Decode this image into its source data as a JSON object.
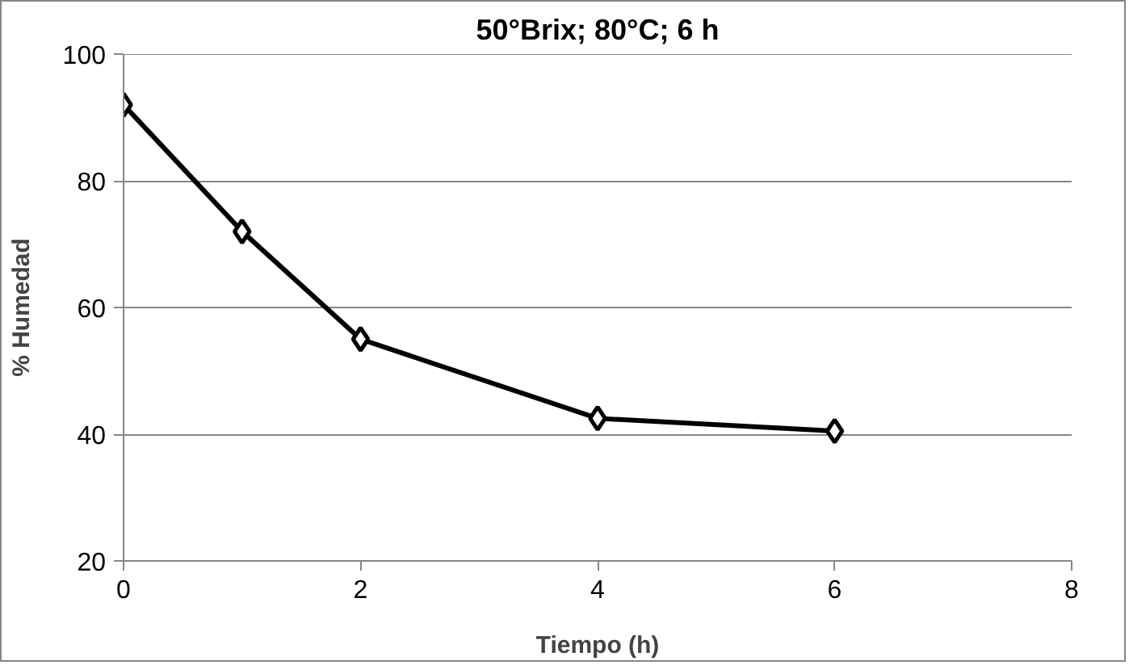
{
  "chart_data": {
    "type": "line",
    "title": "50°Brix; 80°C; 6 h",
    "xlabel": "Tiempo (h)",
    "ylabel": "% Humedad",
    "x": [
      0,
      1,
      2,
      4,
      6
    ],
    "series": [
      {
        "color": "#000000",
        "values": [
          92,
          72,
          55,
          42.5,
          40.5
        ]
      }
    ],
    "xlim": [
      0,
      8
    ],
    "xticks": [
      0,
      2,
      4,
      6,
      8
    ],
    "ylim": [
      20,
      100
    ],
    "yticks": [
      20,
      40,
      60,
      80,
      100
    ],
    "grid": "y",
    "marker": "diamond",
    "line_style": "solid"
  }
}
